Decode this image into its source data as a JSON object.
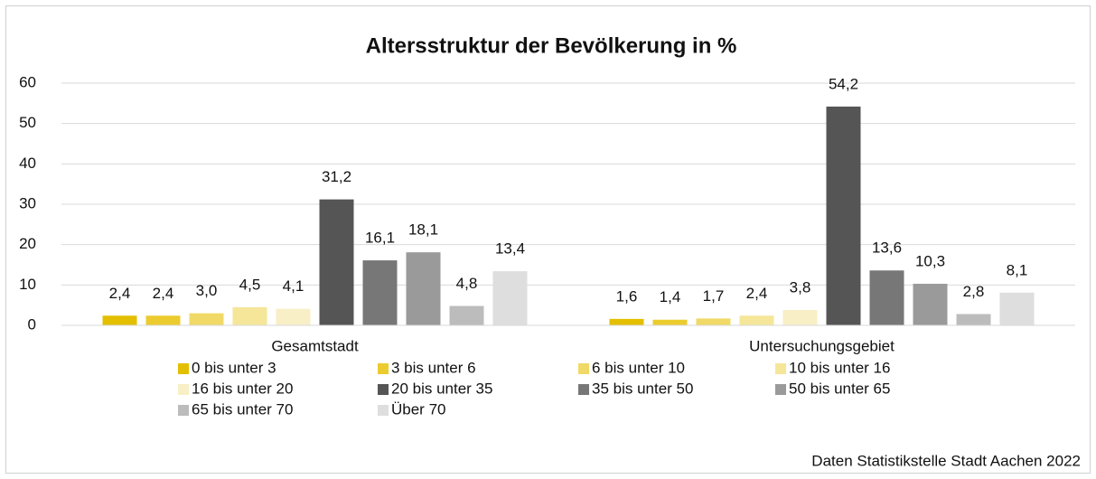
{
  "chart_data": {
    "type": "bar",
    "title": "Altersstruktur der Bevölkerung in %",
    "source": "Daten Statistikstelle Stadt Aachen 2022",
    "categories": [
      "Gesamtstadt",
      "Untersuchungsgebiet"
    ],
    "ylim": [
      0,
      60
    ],
    "yticks": [
      0,
      10,
      20,
      30,
      40,
      50,
      60
    ],
    "grid": true,
    "legend": "bottom",
    "series": [
      {
        "name": "0 bis unter 3",
        "color": "#e3bf00",
        "values": [
          2.4,
          1.6
        ],
        "value_labels": [
          "2,4",
          "1,6"
        ]
      },
      {
        "name": "3 bis unter 6",
        "color": "#eccb2e",
        "values": [
          2.4,
          1.4
        ],
        "value_labels": [
          "2,4",
          "1,4"
        ]
      },
      {
        "name": "6 bis unter 10",
        "color": "#f0d966",
        "values": [
          3.0,
          1.7
        ],
        "value_labels": [
          "3,0",
          "1,7"
        ]
      },
      {
        "name": "10 bis unter 16",
        "color": "#f5e699",
        "values": [
          4.5,
          2.4
        ],
        "value_labels": [
          "4,5",
          "2,4"
        ]
      },
      {
        "name": "16 bis unter 20",
        "color": "#f8efc6",
        "values": [
          4.1,
          3.8
        ],
        "value_labels": [
          "4,1",
          "3,8"
        ]
      },
      {
        "name": "20 bis unter 35",
        "color": "#555555",
        "values": [
          31.2,
          54.2
        ],
        "value_labels": [
          "31,2",
          "54,2"
        ]
      },
      {
        "name": "35 bis unter 50",
        "color": "#777777",
        "values": [
          16.1,
          13.6
        ],
        "value_labels": [
          "16,1",
          "13,6"
        ]
      },
      {
        "name": "50 bis unter 65",
        "color": "#9a9a9a",
        "values": [
          18.1,
          10.3
        ],
        "value_labels": [
          "18,1",
          "10,3"
        ]
      },
      {
        "name": "65 bis unter 70",
        "color": "#bcbcbc",
        "values": [
          4.8,
          2.8
        ],
        "value_labels": [
          "4,8",
          "2,8"
        ]
      },
      {
        "name": "Über 70",
        "color": "#dedede",
        "values": [
          13.4,
          8.1
        ],
        "value_labels": [
          "13,4",
          "8,1"
        ]
      }
    ]
  }
}
